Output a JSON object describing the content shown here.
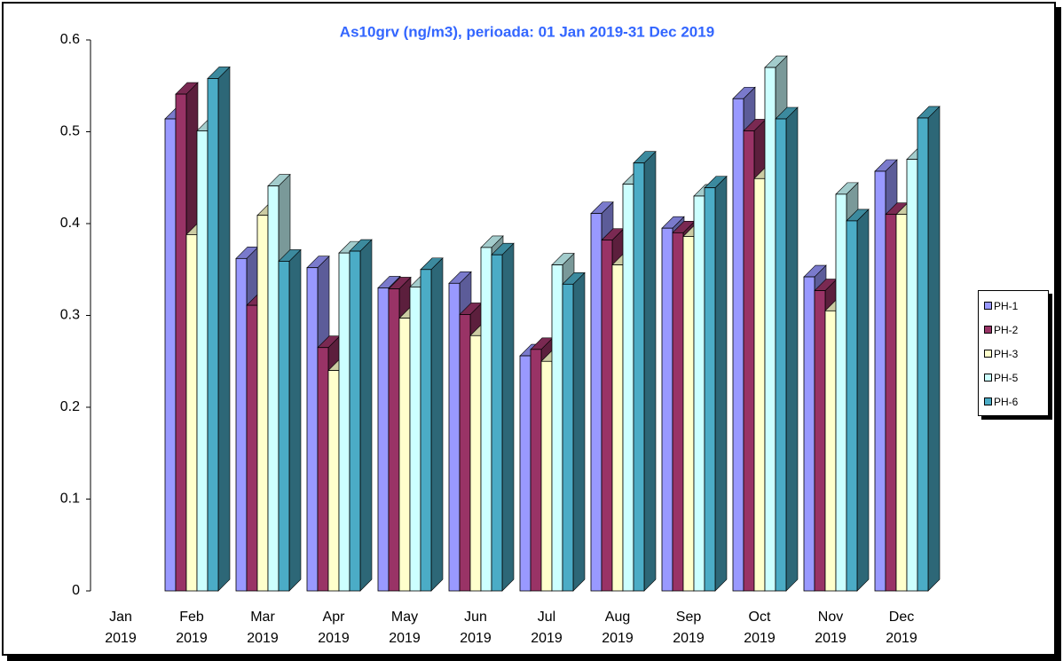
{
  "chart_data": {
    "type": "bar3d",
    "title": "As10grv (ng/m3), perioada: 01 Jan 2019-31 Dec 2019",
    "categories": [
      "Jan 2019",
      "Feb 2019",
      "Mar 2019",
      "Apr 2019",
      "May 2019",
      "Jun 2019",
      "Jul 2019",
      "Aug 2019",
      "Sep 2019",
      "Oct 2019",
      "Nov 2019",
      "Dec 2019"
    ],
    "series": [
      {
        "name": "PH-1",
        "color": "#9999ff",
        "values": [
          null,
          0.514,
          0.362,
          0.352,
          0.33,
          0.335,
          0.256,
          0.411,
          0.395,
          0.536,
          0.342,
          0.457
        ]
      },
      {
        "name": "PH-2",
        "color": "#993366",
        "values": [
          null,
          0.541,
          0.311,
          0.265,
          0.329,
          0.301,
          0.263,
          0.382,
          0.39,
          0.501,
          0.327,
          0.41
        ]
      },
      {
        "name": "PH-3",
        "color": "#ffffcc",
        "values": [
          null,
          0.388,
          0.409,
          0.24,
          0.297,
          0.278,
          0.25,
          0.355,
          0.386,
          0.449,
          0.305,
          0.41
        ]
      },
      {
        "name": "PH-5",
        "color": "#ccffff",
        "values": [
          null,
          0.501,
          0.441,
          0.368,
          0.331,
          0.374,
          0.355,
          0.443,
          0.43,
          0.57,
          0.432,
          0.47
        ]
      },
      {
        "name": "PH-6",
        "color": "#4bacc6",
        "values": [
          null,
          0.558,
          0.359,
          0.37,
          0.35,
          0.366,
          0.334,
          0.466,
          0.439,
          0.514,
          0.403,
          0.515
        ]
      }
    ],
    "ylim": [
      0,
      0.6
    ],
    "yticks": [
      0,
      0.1,
      0.2,
      0.3,
      0.4,
      0.5,
      0.6
    ],
    "legend": "right"
  }
}
